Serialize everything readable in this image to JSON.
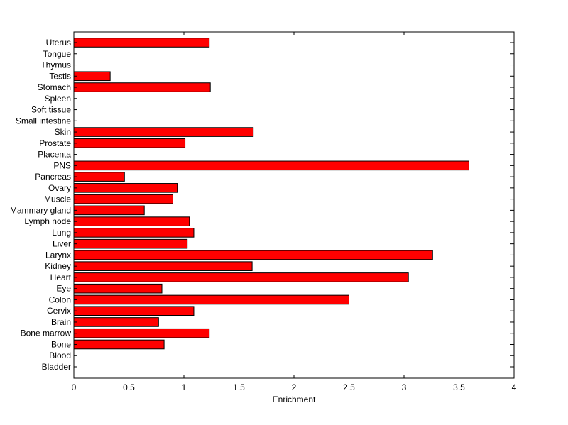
{
  "chart_data": {
    "type": "bar",
    "orientation": "horizontal",
    "title": "",
    "xlabel": "Enrichment",
    "ylabel": "",
    "xlim": [
      0,
      4
    ],
    "xticks": [
      "0",
      "0.5",
      "1",
      "1.5",
      "2",
      "2.5",
      "3",
      "3.5",
      "4"
    ],
    "grid": false,
    "legend": "none",
    "bar_color": "#ff0000",
    "bar_edge_color": "#000000",
    "categories": [
      "Bladder",
      "Blood",
      "Bone",
      "Bone marrow",
      "Brain",
      "Cervix",
      "Colon",
      "Eye",
      "Heart",
      "Kidney",
      "Larynx",
      "Liver",
      "Lung",
      "Lymph node",
      "Mammary gland",
      "Muscle",
      "Ovary",
      "Pancreas",
      "PNS",
      "Placenta",
      "Prostate",
      "Skin",
      "Small intestine",
      "Soft tissue",
      "Spleen",
      "Stomach",
      "Testis",
      "Thymus",
      "Tongue",
      "Uterus"
    ],
    "values": [
      0,
      0,
      0.82,
      1.23,
      0.77,
      1.09,
      2.5,
      0.8,
      3.04,
      1.62,
      3.26,
      1.03,
      1.09,
      1.05,
      0.64,
      0.9,
      0.94,
      0.46,
      3.59,
      0,
      1.01,
      1.63,
      0,
      0,
      0,
      1.24,
      0.33,
      0,
      0,
      1.23
    ]
  }
}
